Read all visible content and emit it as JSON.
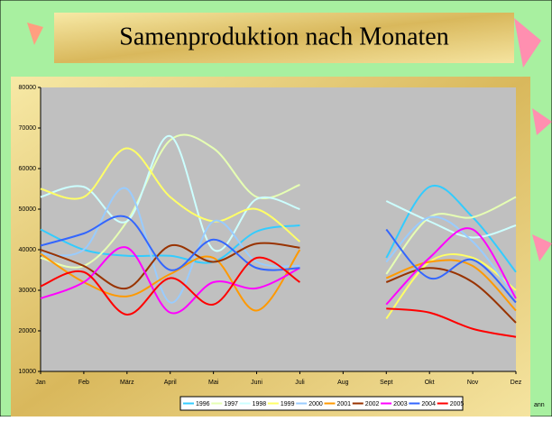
{
  "chart_data": {
    "type": "line",
    "title": "Samenproduktion nach Monaten",
    "categories": [
      "Jan",
      "Feb",
      "März",
      "April",
      "Mai",
      "Juni",
      "Juli",
      "Aug",
      "Sept",
      "Okt",
      "Nov",
      "Dez"
    ],
    "ylim": [
      10000,
      80000
    ],
    "yticks": [
      10000,
      20000,
      30000,
      40000,
      50000,
      60000,
      70000,
      80000
    ],
    "smooth": true,
    "grid": false,
    "legend": "bottom",
    "annotation": "ann",
    "series": [
      {
        "name": "1996",
        "color": "#33ccff",
        "values": [
          45000,
          40000,
          38500,
          38500,
          37000,
          44500,
          46000,
          null,
          38000,
          55500,
          48000,
          34500
        ]
      },
      {
        "name": "1997",
        "color": "#e6ffb3",
        "values": [
          38000,
          36000,
          47000,
          67000,
          65000,
          53000,
          56000,
          null,
          34000,
          48000,
          48000,
          53000
        ]
      },
      {
        "name": "1998",
        "color": "#ccffff",
        "values": [
          53000,
          55500,
          47000,
          68000,
          40000,
          52500,
          50000,
          null,
          52000,
          47000,
          43000,
          46000
        ]
      },
      {
        "name": "1999",
        "color": "#ffff66",
        "values": [
          55000,
          53000,
          65000,
          53000,
          47000,
          50000,
          42000,
          null,
          23000,
          37000,
          38000,
          30000
        ]
      },
      {
        "name": "2000",
        "color": "#99ccff",
        "values": [
          39000,
          40000,
          55000,
          27000,
          47000,
          37000,
          36000,
          null,
          37000,
          48000,
          42000,
          28000
        ]
      },
      {
        "name": "2001",
        "color": "#ff9900",
        "values": [
          39000,
          32000,
          28500,
          34000,
          38000,
          25000,
          40000,
          null,
          33000,
          37000,
          36000,
          25000
        ]
      },
      {
        "name": "2002",
        "color": "#993300",
        "values": [
          40000,
          36000,
          30500,
          41000,
          37000,
          41500,
          40500,
          null,
          32000,
          35500,
          32000,
          22000
        ]
      },
      {
        "name": "2003",
        "color": "#ff00ff",
        "values": [
          28000,
          32000,
          40500,
          24500,
          32000,
          30500,
          35500,
          null,
          26500,
          38000,
          45000,
          28000
        ]
      },
      {
        "name": "2004",
        "color": "#3366ff",
        "values": [
          41000,
          44000,
          48000,
          35000,
          42500,
          35500,
          35500,
          null,
          45000,
          33000,
          37500,
          27000
        ]
      },
      {
        "name": "2005",
        "color": "#ff0000",
        "values": [
          31000,
          34500,
          24000,
          33000,
          26500,
          38000,
          32000,
          null,
          25500,
          24500,
          20500,
          18500
        ]
      }
    ]
  }
}
